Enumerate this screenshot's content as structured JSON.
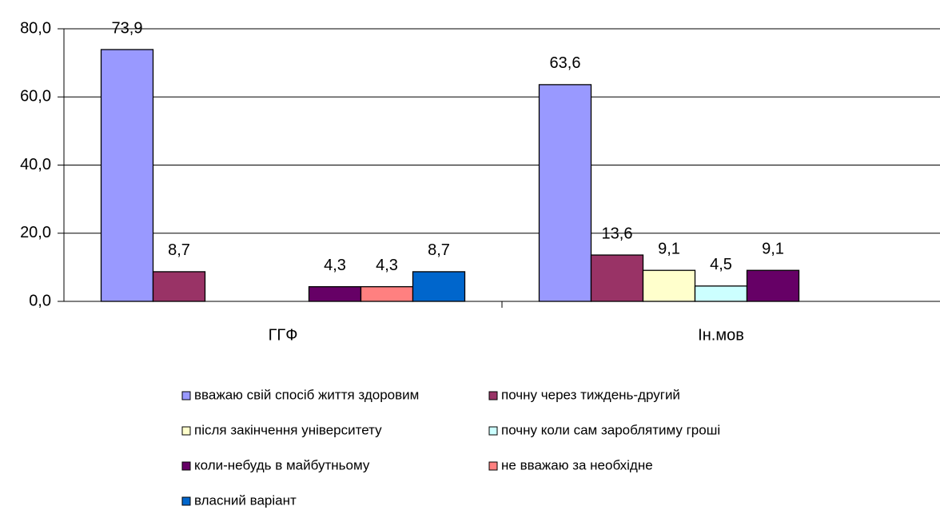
{
  "chart_data": {
    "type": "bar",
    "categories": [
      "ГГФ",
      "Ін.мов"
    ],
    "series": [
      {
        "name": "вважаю свій спосіб життя здоровим",
        "color": "#9999ff",
        "values": [
          73.9,
          63.6
        ],
        "value_labels": [
          "73,9",
          "63,6"
        ]
      },
      {
        "name": "почну через тиждень-другий",
        "color": "#993366",
        "values": [
          8.7,
          13.6
        ],
        "value_labels": [
          "8,7",
          "13,6"
        ]
      },
      {
        "name": "після закінчення університету",
        "color": "#ffffcc",
        "values": [
          null,
          9.1
        ],
        "value_labels": [
          null,
          "9,1"
        ]
      },
      {
        "name": "почну коли сам зароблятиму гроші",
        "color": "#ccffff",
        "values": [
          null,
          4.5
        ],
        "value_labels": [
          null,
          "4,5"
        ]
      },
      {
        "name": "коли-небудь в майбутньому",
        "color": "#660066",
        "values": [
          4.3,
          9.1
        ],
        "value_labels": [
          "4,3",
          "9,1"
        ]
      },
      {
        "name": "не вважаю за необхідне",
        "color": "#ff8080",
        "values": [
          4.3,
          null
        ],
        "value_labels": [
          "4,3",
          null
        ]
      },
      {
        "name": "власний варіант",
        "color": "#0066cc",
        "values": [
          8.7,
          null
        ],
        "value_labels": [
          "8,7",
          null
        ]
      }
    ],
    "ylim": [
      0,
      80
    ],
    "yticks": [
      {
        "value": 0,
        "label": "0,0"
      },
      {
        "value": 20,
        "label": "20,0"
      },
      {
        "value": 40,
        "label": "40,0"
      },
      {
        "value": 60,
        "label": "60,0"
      },
      {
        "value": 80,
        "label": "80,0"
      }
    ],
    "grid": true,
    "legend": "bottom"
  }
}
